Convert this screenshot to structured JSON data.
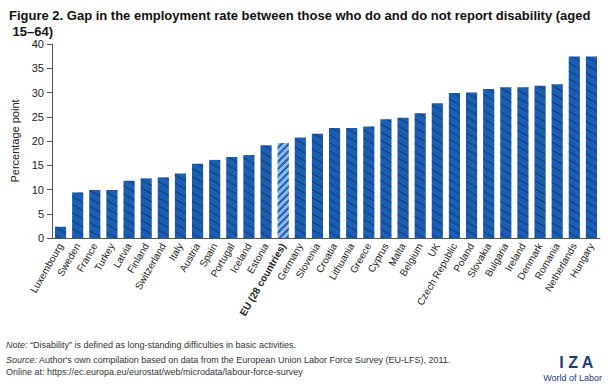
{
  "chart_data": {
    "type": "bar",
    "title": "Figure 2. Gap in the employment rate between those who do and do not report disability (aged 15–64)",
    "y_label": "Percentage point",
    "categories": [
      "Luxembourg",
      "Sweden",
      "France",
      "Turkey",
      "Latvia",
      "Finland",
      "Switzerland",
      "Italy",
      "Austria",
      "Spain",
      "Portugal",
      "Iceland",
      "Estonia",
      "EU (28 countries)",
      "Germany",
      "Slovenia",
      "Croatia",
      "Lithuania",
      "Greece",
      "Cyprus",
      "Malta",
      "Belgium",
      "UK",
      "Czech Republic",
      "Poland",
      "Slovakia",
      "Bulgaria",
      "Ireland",
      "Denmark",
      "Romania",
      "Netherlands",
      "Hungary"
    ],
    "values": [
      2.3,
      9.4,
      9.9,
      9.9,
      11.8,
      12.3,
      12.5,
      13.3,
      15.3,
      16.1,
      16.7,
      17.1,
      19.1,
      19.6,
      20.7,
      21.5,
      22.7,
      22.7,
      23.0,
      24.5,
      24.8,
      25.7,
      27.8,
      29.9,
      30.0,
      30.7,
      31.1,
      31.1,
      31.4,
      31.7,
      37.4,
      37.4
    ],
    "colors": [
      "#1a5fb4",
      "#1a5fb4",
      "#1a5fb4",
      "#1a5fb4",
      "#1a5fb4",
      "#1a5fb4",
      "#1a5fb4",
      "#1a5fb4",
      "#1a5fb4",
      "#1a5fb4",
      "#1a5fb4",
      "#1a5fb4",
      "#1a5fb4",
      "#8fb8e6",
      "#1a5fb4",
      "#1a5fb4",
      "#1a5fb4",
      "#1a5fb4",
      "#1a5fb4",
      "#1a5fb4",
      "#1a5fb4",
      "#1a5fb4",
      "#1a5fb4",
      "#1a5fb4",
      "#1a5fb4",
      "#1a5fb4",
      "#1a5fb4",
      "#1a5fb4",
      "#1a5fb4",
      "#1a5fb4",
      "#1a5fb4",
      "#1a5fb4"
    ],
    "ylim": [
      0,
      40
    ],
    "yticks": [
      0,
      5,
      10,
      15,
      20,
      25,
      30,
      35,
      40
    ],
    "grid": false,
    "annotations": [
      "Note: “Disability” is defined as long-standing difficulties in basic activities.",
      "Source: Author's own compilation based on data from the European Union Labor Force Survey (EU-LFS), 2011.",
      "Online at: https://ec.europa.eu/eurostat/web/microdata/labour-force-survey",
      "I Z A",
      "World of Labor"
    ]
  }
}
